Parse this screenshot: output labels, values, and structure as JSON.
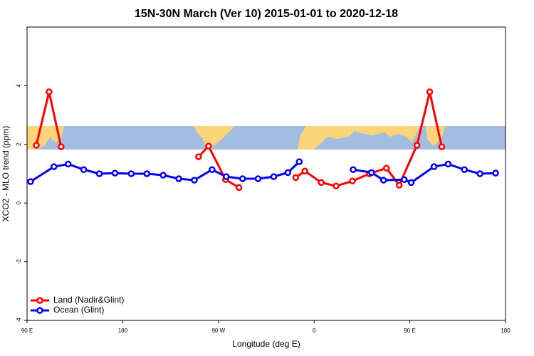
{
  "chart_data": {
    "type": "line",
    "title": "15N-30N March (Ver 10)   2015-01-01 to 2020-12-18",
    "x_label": "Longitude (deg E)",
    "y_label": "XCO2 - MLO trend (ppm)",
    "xlim": [
      90,
      540
    ],
    "xticks": [
      {
        "value": 90,
        "label": "90 E"
      },
      180,
      {
        "value": 270,
        "label": "90 W"
      },
      {
        "value": 360,
        "label": "0"
      },
      {
        "value": 450,
        "label": "90 E"
      },
      {
        "value": 540,
        "label": "180"
      }
    ],
    "ylim": [
      -4,
      6
    ],
    "yticks": [
      -4,
      -2,
      0,
      2,
      4
    ],
    "legend": "bottom-left",
    "series": [
      {
        "name": "Land (Nadir&Glint)",
        "color": "#ff0000",
        "x": [
          98.7,
          110.7,
          122,
          null,
          251.3,
          260.7,
          276.7,
          289.3,
          null,
          342.7,
          351.3,
          366.7,
          380.7,
          396,
          412,
          428,
          440,
          456.7,
          468.7,
          480
        ],
        "values": [
          1.97,
          3.79,
          1.92,
          null,
          1.58,
          1.94,
          0.8,
          0.53,
          null,
          0.87,
          1.09,
          0.7,
          0.58,
          0.75,
          1.0,
          1.19,
          0.61,
          1.97,
          3.79,
          1.92
        ]
      },
      {
        "name": "Ocean (Glint)",
        "color": "#0000ee",
        "x": [
          93.3,
          115.3,
          128.7,
          143.3,
          158,
          172.7,
          188,
          202.7,
          218,
          232.7,
          247.3,
          264,
          277.3,
          292.7,
          307.3,
          322,
          335.3,
          346,
          null,
          396.7,
          414,
          425.3,
          444.7,
          451.3,
          472.7,
          486,
          501.3,
          516,
          530.7
        ],
        "values": [
          0.73,
          1.24,
          1.33,
          1.14,
          1.0,
          1.02,
          1.0,
          1.0,
          0.95,
          0.83,
          0.78,
          1.14,
          0.9,
          0.83,
          0.83,
          0.9,
          1.04,
          1.41,
          null,
          1.14,
          1.04,
          0.78,
          0.8,
          0.7,
          1.24,
          1.33,
          1.14,
          1.0,
          1.02
        ]
      }
    ]
  }
}
